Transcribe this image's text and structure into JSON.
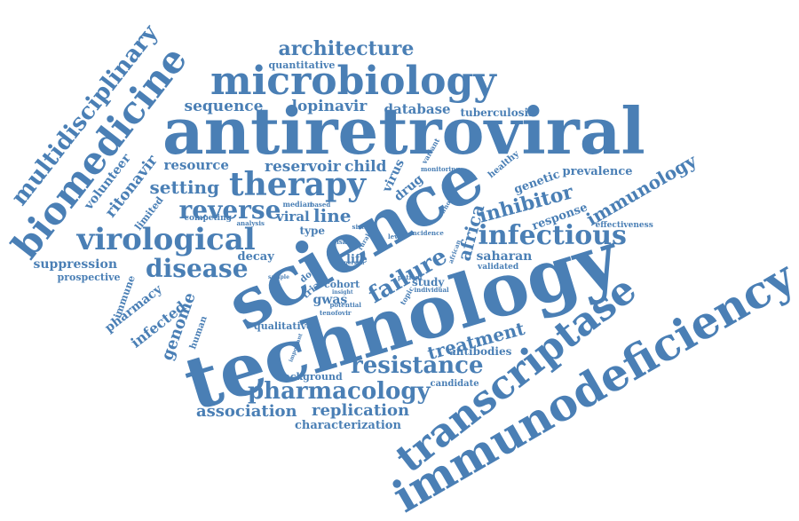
{
  "word_color": "#4a7fb5",
  "background_color": "#ffffff",
  "words": {
    "antiretroviral": "antiretroviral",
    "technology": "technology",
    "science": "science",
    "immunodeficiency": "immunodeficiency",
    "transcriptase": "transcriptase",
    "microbiology": "microbiology",
    "biomedicine": "biomedicine",
    "multidisciplinary": "multidisciplinary",
    "virological": "virological",
    "infectious": "infectious",
    "therapy": "therapy",
    "disease": "disease",
    "reverse": "reverse",
    "failure": "failure",
    "resistance": "resistance",
    "pharmacology": "pharmacology",
    "architecture": "architecture",
    "inhibitor": "inhibitor",
    "immunology": "immunology",
    "treatment": "treatment",
    "africa": "africa",
    "replication": "replication",
    "association": "association",
    "setting": "setting",
    "sequence": "sequence",
    "lopinavir": "lopinavir",
    "database": "database",
    "tuberculosis": "tuberculosis",
    "quantitative": "quantitative",
    "reservoir": "reservoir",
    "child": "child",
    "resource": "resource",
    "ritonavir": "ritonavir",
    "volunteer": "volunteer",
    "limited": "limited",
    "line": "line",
    "viral": "viral",
    "genetic": "genetic",
    "prevalence": "prevalence",
    "response": "response",
    "effectiveness": "effectiveness",
    "saharan": "saharan",
    "validated": "validated",
    "study": "study",
    "life": "life",
    "gwas": "gwas",
    "cohort": "cohort",
    "antibodies": "antibodies",
    "background": "background",
    "candidate": "candidate",
    "characterization": "characterization",
    "suppression": "suppression",
    "prospective": "prospective",
    "immune": "immune",
    "pharmacy": "pharmacy",
    "infected": "infected",
    "genome": "genome",
    "human": "human",
    "qualitative": "qualitative",
    "decay": "decay",
    "type": "type",
    "median": "median",
    "based": "based",
    "competing": "competing",
    "analysis": "analysis",
    "virus": "virus",
    "drug": "drug",
    "healthy": "healthy",
    "variant": "variant",
    "monitoring": "monitoring",
    "dose": "dose",
    "trial": "trial",
    "topic": "topic",
    "individual": "individual",
    "incidence": "incidence",
    "level": "level",
    "patient": "patient",
    "potential": "potential",
    "tenofovir": "tenofovir",
    "insight": "insight",
    "risk": "risk",
    "size": "size",
    "rural": "rural",
    "important": "important",
    "african": "african",
    "whole": "whole",
    "sample": "sample",
    "person": "person"
  }
}
